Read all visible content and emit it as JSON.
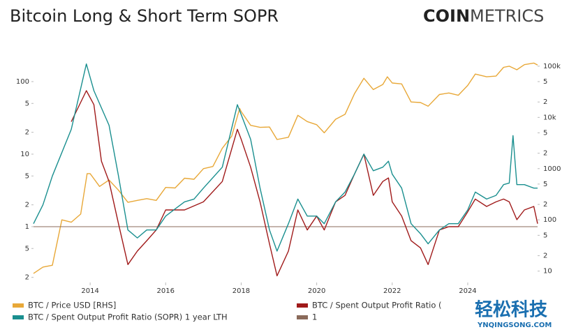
{
  "chart_data": {
    "type": "line",
    "title": "Bitcoin Long & Short Term SOPR",
    "brand": {
      "bold": "COIN",
      "light": "METRICS"
    },
    "watermark": {
      "main": "轻松科技",
      "sub": "YNQINGSONG.COM"
    },
    "log_scale": true,
    "grid": false,
    "legend": "bottom",
    "xlim": [
      2012.5,
      2025.85
    ],
    "xticks": [
      2014,
      2016,
      2018,
      2020,
      2022,
      2024
    ],
    "ylim": [
      0.17,
      190
    ],
    "yticks": [
      {
        "value": 0.2,
        "label": "2"
      },
      {
        "value": 0.5,
        "label": "5"
      },
      1,
      2,
      5,
      10,
      {
        "value": 20,
        "label": "2"
      },
      {
        "value": 50,
        "label": "5"
      },
      100
    ],
    "y2lim": [
      6,
      124000
    ],
    "y2ticks": [
      10,
      {
        "value": 20,
        "label": "2"
      },
      {
        "value": 50,
        "label": "5"
      },
      100,
      {
        "value": 200,
        "label": "2"
      },
      {
        "value": 500,
        "label": "5"
      },
      1000,
      {
        "value": 2000,
        "label": "2"
      },
      {
        "value": 5000,
        "label": "5"
      },
      {
        "value": 10000,
        "label": "10k"
      },
      {
        "value": 20000,
        "label": "2"
      },
      {
        "value": 50000,
        "label": "5"
      },
      {
        "value": 100000,
        "label": "100k"
      }
    ],
    "series": [
      {
        "name": "BTC / Price USD [RHS]",
        "color": "#e8a838",
        "axis": "y2",
        "x": [
          2012.5,
          2012.75,
          2013.0,
          2013.25,
          2013.5,
          2013.75,
          2013.92,
          2014.0,
          2014.25,
          2014.5,
          2014.75,
          2015.0,
          2015.25,
          2015.5,
          2015.75,
          2016.0,
          2016.25,
          2016.5,
          2016.75,
          2017.0,
          2017.25,
          2017.5,
          2017.75,
          2017.96,
          2018.0,
          2018.25,
          2018.5,
          2018.75,
          2018.95,
          2019.25,
          2019.5,
          2019.75,
          2020.0,
          2020.2,
          2020.5,
          2020.75,
          2021.0,
          2021.25,
          2021.5,
          2021.75,
          2021.87,
          2022.0,
          2022.25,
          2022.5,
          2022.75,
          2022.95,
          2023.25,
          2023.5,
          2023.75,
          2024.0,
          2024.2,
          2024.5,
          2024.75,
          2024.95,
          2025.1,
          2025.3,
          2025.5,
          2025.75,
          2025.85
        ],
        "values": [
          9,
          12,
          13,
          100,
          90,
          130,
          800,
          800,
          450,
          600,
          380,
          220,
          240,
          260,
          240,
          430,
          420,
          650,
          620,
          1000,
          1100,
          2500,
          4300,
          15000,
          13000,
          7000,
          6400,
          6500,
          3700,
          4100,
          11000,
          8300,
          7200,
          5000,
          9200,
          11500,
          29000,
          58000,
          35000,
          44000,
          62000,
          47000,
          45000,
          20000,
          19500,
          16500,
          28000,
          30000,
          27000,
          42000,
          70000,
          62000,
          64000,
          95000,
          100000,
          85000,
          107000,
          115000,
          105000
        ]
      },
      {
        "name": "BTC / Spent Output Profit Ratio (",
        "color": "#a01a1a",
        "x": [
          2013.5,
          2013.9,
          2014.1,
          2014.3,
          2014.5,
          2014.75,
          2015.0,
          2015.25,
          2015.5,
          2015.75,
          2016.0,
          2016.5,
          2017.0,
          2017.5,
          2017.9,
          2018.0,
          2018.25,
          2018.5,
          2018.75,
          2018.95,
          2019.25,
          2019.5,
          2019.75,
          2020.0,
          2020.2,
          2020.5,
          2020.75,
          2021.0,
          2021.25,
          2021.5,
          2021.75,
          2021.9,
          2022.0,
          2022.25,
          2022.5,
          2022.75,
          2022.95,
          2023.25,
          2023.5,
          2023.75,
          2024.0,
          2024.2,
          2024.5,
          2024.75,
          2024.95,
          2025.1,
          2025.3,
          2025.5,
          2025.75,
          2025.85
        ],
        "values": [
          28,
          75,
          48,
          8,
          4.2,
          1.1,
          0.3,
          0.46,
          0.64,
          0.9,
          1.7,
          1.7,
          2.2,
          4.2,
          22,
          16,
          6.6,
          2.2,
          0.58,
          0.21,
          0.46,
          1.7,
          0.9,
          1.4,
          0.9,
          2.2,
          2.7,
          5.3,
          10,
          2.7,
          4.2,
          4.7,
          2.2,
          1.4,
          0.64,
          0.51,
          0.3,
          0.9,
          1,
          1,
          1.6,
          2.4,
          1.9,
          2.2,
          2.4,
          2.2,
          1.25,
          1.7,
          1.9,
          1.1
        ]
      },
      {
        "name": "BTC / Spent Output Profit Ratio (SOPR) 1 year LTH",
        "color": "#1a8f8f",
        "x": [
          2012.5,
          2012.75,
          2013.0,
          2013.5,
          2013.9,
          2014.1,
          2014.5,
          2014.75,
          2015.0,
          2015.25,
          2015.5,
          2015.75,
          2016.0,
          2016.5,
          2016.75,
          2017.0,
          2017.5,
          2017.9,
          2018.0,
          2018.25,
          2018.5,
          2018.75,
          2018.95,
          2019.25,
          2019.5,
          2019.75,
          2020.0,
          2020.2,
          2020.5,
          2020.75,
          2021.0,
          2021.25,
          2021.5,
          2021.75,
          2021.9,
          2022.0,
          2022.25,
          2022.5,
          2022.75,
          2022.95,
          2023.25,
          2023.5,
          2023.75,
          2024.0,
          2024.2,
          2024.5,
          2024.75,
          2024.95,
          2025.1,
          2025.2,
          2025.3,
          2025.5,
          2025.75,
          2025.85
        ],
        "values": [
          1.1,
          2,
          5,
          22,
          175,
          75,
          25,
          5,
          0.9,
          0.7,
          0.9,
          0.9,
          1.4,
          2.2,
          2.4,
          3.4,
          6.6,
          48,
          35,
          16,
          3.4,
          0.9,
          0.46,
          1.1,
          2.4,
          1.4,
          1.4,
          1.1,
          2.2,
          3,
          5.3,
          10,
          5.9,
          6.6,
          8,
          5.3,
          3.4,
          1.1,
          0.8,
          0.58,
          0.9,
          1.1,
          1.1,
          1.7,
          3,
          2.4,
          2.7,
          3.8,
          4,
          18,
          3.8,
          3.8,
          3.4,
          3.4
        ]
      },
      {
        "name": "1",
        "color": "#8a6a5a",
        "x": [
          2012.5,
          2025.85
        ],
        "values": [
          1,
          1
        ]
      }
    ]
  }
}
